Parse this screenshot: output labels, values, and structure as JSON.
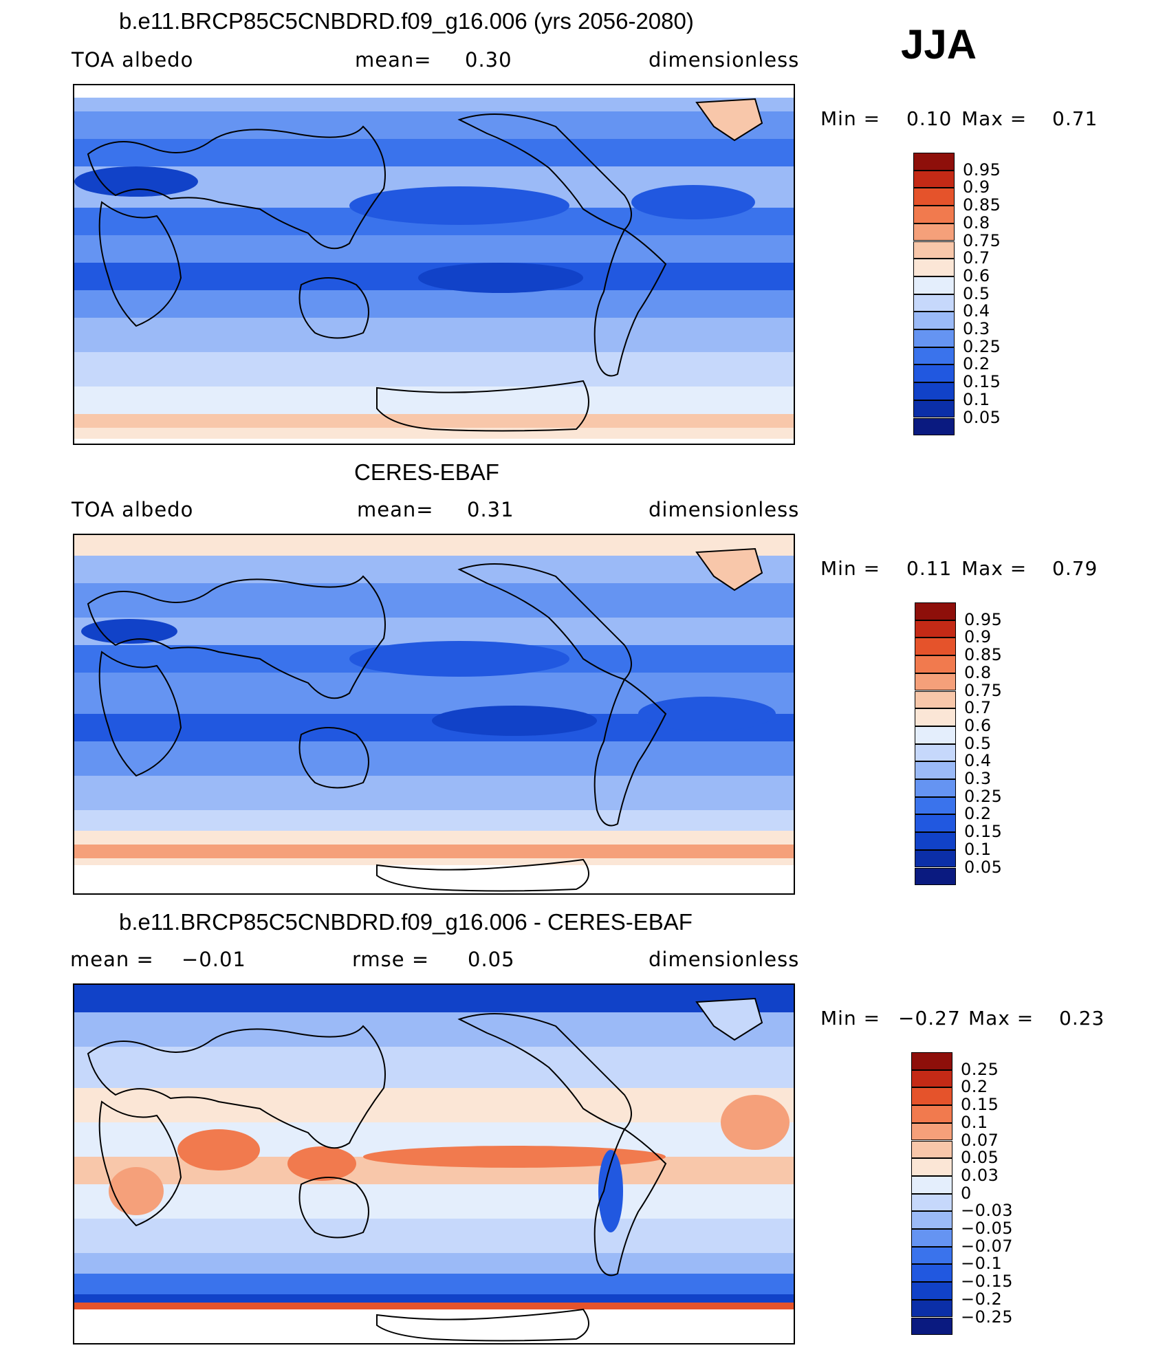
{
  "season": "JJA",
  "panels": [
    {
      "title": "b.e11.BRCP85C5CNBDRD.f09_g16.006 (yrs 2056-2080)",
      "left_label": "TOA albedo",
      "center_label": "mean=",
      "center_value": "0.30",
      "right_label": "dimensionless",
      "min_label": "Min =",
      "min_value": "0.10",
      "max_label": "Max =",
      "max_value": "0.71",
      "colorbar_labels": [
        "0.95",
        "0.9",
        "0.85",
        "0.8",
        "0.75",
        "0.7",
        "0.6",
        "0.5",
        "0.4",
        "0.3",
        "0.25",
        "0.2",
        "0.15",
        "0.1",
        "0.05"
      ]
    },
    {
      "title": "CERES-EBAF",
      "left_label": "TOA albedo",
      "center_label": "mean=",
      "center_value": "0.31",
      "right_label": "dimensionless",
      "min_label": "Min =",
      "min_value": "0.11",
      "max_label": "Max =",
      "max_value": "0.79",
      "colorbar_labels": [
        "0.95",
        "0.9",
        "0.85",
        "0.8",
        "0.75",
        "0.7",
        "0.6",
        "0.5",
        "0.4",
        "0.3",
        "0.25",
        "0.2",
        "0.15",
        "0.1",
        "0.05"
      ]
    },
    {
      "title": "b.e11.BRCP85C5CNBDRD.f09_g16.006 - CERES-EBAF",
      "left_label": "mean =",
      "left_value": "−0.01",
      "center_label": "rmse =",
      "center_value": "0.05",
      "right_label": "dimensionless",
      "min_label": "Min =",
      "min_value": "−0.27",
      "max_label": "Max =",
      "max_value": "0.23",
      "colorbar_labels": [
        "0.25",
        "0.2",
        "0.15",
        "0.1",
        "0.07",
        "0.05",
        "0.03",
        "0",
        "−0.03",
        "−0.05",
        "−0.07",
        "−0.1",
        "−0.15",
        "−0.2",
        "−0.25"
      ]
    }
  ],
  "colors": {
    "albedo_palette": [
      "#0a1a80",
      "#0b2fa8",
      "#1142c8",
      "#2158e0",
      "#3a73ec",
      "#6594f2",
      "#9bbaf7",
      "#c6d8fb",
      "#e4eefc",
      "#fbe6d6",
      "#f8c7aa",
      "#f5a07a",
      "#f17a4e",
      "#e5532b",
      "#c42a16",
      "#8e0f0a"
    ],
    "diff_palette": [
      "#0a1a80",
      "#0b2fa8",
      "#1142c8",
      "#2158e0",
      "#3a73ec",
      "#6594f2",
      "#9bbaf7",
      "#c6d8fb",
      "#e4eefc",
      "#fbe6d6",
      "#f8c7aa",
      "#f5a07a",
      "#f17a4e",
      "#e5532b",
      "#c42a16",
      "#8e0f0a"
    ]
  },
  "chart_data": [
    {
      "type": "heatmap",
      "title": "b.e11.BRCP85C5CNBDRD.f09_g16.006 (yrs 2056-2080)",
      "variable": "TOA albedo",
      "units": "dimensionless",
      "mean": 0.3,
      "min": 0.1,
      "max": 0.71,
      "contour_levels": [
        0.05,
        0.1,
        0.15,
        0.2,
        0.25,
        0.3,
        0.4,
        0.5,
        0.6,
        0.7,
        0.75,
        0.8,
        0.85,
        0.9,
        0.95
      ]
    },
    {
      "type": "heatmap",
      "title": "CERES-EBAF",
      "variable": "TOA albedo",
      "units": "dimensionless",
      "mean": 0.31,
      "min": 0.11,
      "max": 0.79,
      "contour_levels": [
        0.05,
        0.1,
        0.15,
        0.2,
        0.25,
        0.3,
        0.4,
        0.5,
        0.6,
        0.7,
        0.75,
        0.8,
        0.85,
        0.9,
        0.95
      ]
    },
    {
      "type": "heatmap",
      "title": "b.e11.BRCP85C5CNBDRD.f09_g16.006 - CERES-EBAF",
      "units": "dimensionless",
      "mean": -0.01,
      "rmse": 0.05,
      "min": -0.27,
      "max": 0.23,
      "contour_levels": [
        -0.25,
        -0.2,
        -0.15,
        -0.1,
        -0.07,
        -0.05,
        -0.03,
        0,
        0.03,
        0.05,
        0.07,
        0.1,
        0.15,
        0.2,
        0.25
      ]
    }
  ]
}
